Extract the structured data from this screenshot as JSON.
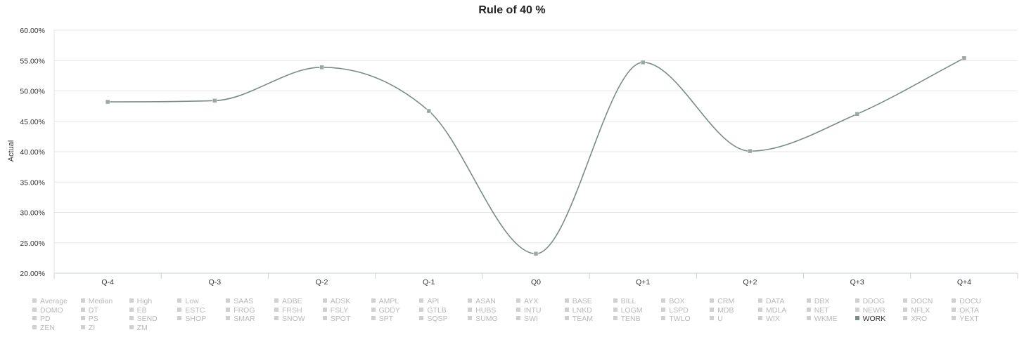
{
  "chart_data": {
    "type": "line",
    "title": "Rule of 40 %",
    "ylabel": "Actual",
    "xlabel": "",
    "ylim": [
      20,
      60
    ],
    "y_tick_step": 5,
    "y_tick_suffix": "%",
    "grid": true,
    "categories": [
      "Q-4",
      "Q-3",
      "Q-2",
      "Q-1",
      "Q0",
      "Q+1",
      "Q+2",
      "Q+3",
      "Q+4"
    ],
    "series": [
      {
        "name": "WORK",
        "color": "#7a8c86",
        "values": [
          48.2,
          48.4,
          53.9,
          46.7,
          23.2,
          54.7,
          40.1,
          46.2,
          55.4
        ]
      }
    ],
    "legend": {
      "placement": "bottom",
      "items": [
        "Average",
        "Median",
        "High",
        "Low",
        "SAAS",
        "ADBE",
        "ADSK",
        "AMPL",
        "API",
        "ASAN",
        "AYX",
        "BASE",
        "BILL",
        "BOX",
        "CRM",
        "DATA",
        "DBX",
        "DDOG",
        "DOCN",
        "DOCU",
        "DOMO",
        "DT",
        "EB",
        "ESTC",
        "FROG",
        "FRSH",
        "FSLY",
        "GDDY",
        "GTLB",
        "HUBS",
        "INTU",
        "LNKD",
        "LOGM",
        "LSPD",
        "MDB",
        "MDLA",
        "NET",
        "NEWR",
        "NFLX",
        "OKTA",
        "PD",
        "PS",
        "SEND",
        "SHOP",
        "SMAR",
        "SNOW",
        "SPOT",
        "SPT",
        "SQSP",
        "SUMO",
        "SWI",
        "TEAM",
        "TENB",
        "TWLO",
        "U",
        "WIX",
        "WKME",
        "WORK",
        "XRO",
        "YEXT",
        "ZEN",
        "ZI",
        "ZM"
      ],
      "active": "WORK"
    }
  }
}
